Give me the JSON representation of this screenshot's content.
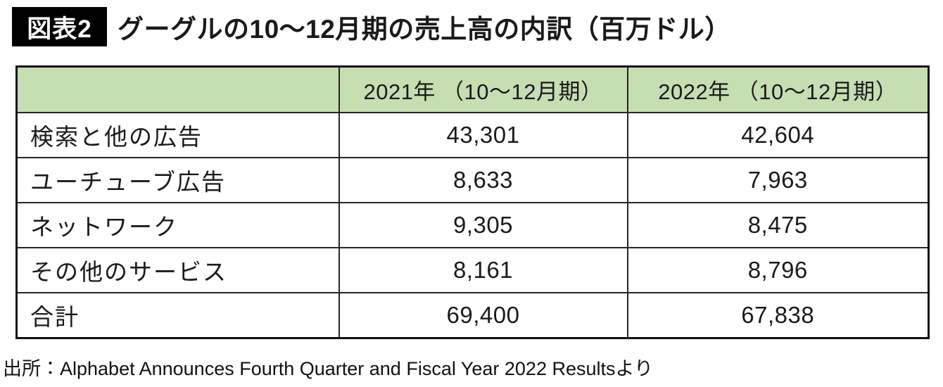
{
  "figure": {
    "badge": "図表2",
    "title": "グーグルの10〜12月期の売上高の内訳（百万ドル）"
  },
  "table": {
    "corner_label": "",
    "columns": [
      "2021年 （10〜12月期）",
      "2022年 （10〜12月期）"
    ],
    "rows": [
      {
        "label": "検索と他の広告",
        "y2021": "43,301",
        "y2022": "42,604"
      },
      {
        "label": "ユーチューブ広告",
        "y2021": "8,633",
        "y2022": "7,963"
      },
      {
        "label": "ネットワーク",
        "y2021": "9,305",
        "y2022": "8,475"
      },
      {
        "label": "その他のサービス",
        "y2021": "8,161",
        "y2022": "8,796"
      },
      {
        "label": "合計",
        "y2021": "69,400",
        "y2022": "67,838"
      }
    ]
  },
  "source": "出所：Alphabet Announces Fourth Quarter and Fiscal Year 2022 Resultsより",
  "colors": {
    "header_bg": "#c5deb2",
    "outer_border": "#111111",
    "inner_border": "#262626",
    "badge_bg": "#000000",
    "badge_text": "#ffffff",
    "text": "#1a1a1a"
  },
  "chart_data": {
    "type": "table",
    "title": "グーグルの10〜12月期の売上高の内訳（百万ドル）",
    "categories": [
      "検索と他の広告",
      "ユーチューブ広告",
      "ネットワーク",
      "その他のサービス",
      "合計"
    ],
    "series": [
      {
        "name": "2021年（10〜12月期）",
        "values": [
          43301,
          8633,
          9305,
          8161,
          69400
        ]
      },
      {
        "name": "2022年（10〜12月期）",
        "values": [
          42604,
          7963,
          8475,
          8796,
          67838
        ]
      }
    ],
    "unit": "百万ドル",
    "source": "Alphabet Announces Fourth Quarter and Fiscal Year 2022 Results"
  }
}
